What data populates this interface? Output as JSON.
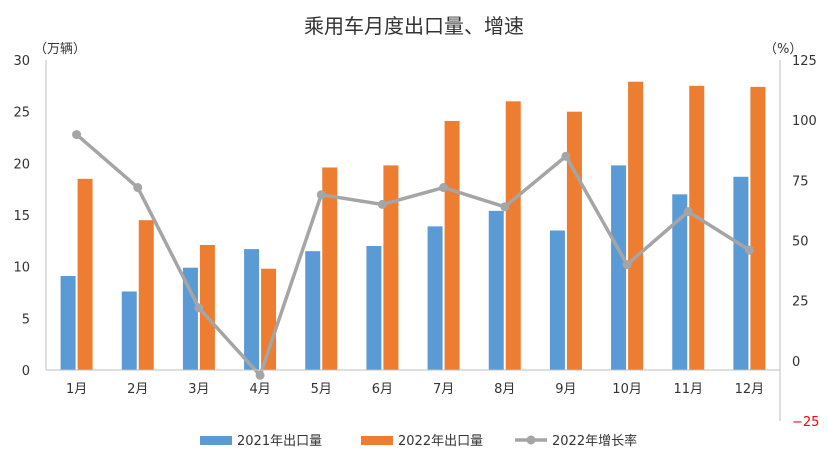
{
  "chart_data": {
    "type": "bar",
    "title": "乘用车月度出口量、增速",
    "left_axis_label": "（万辆）",
    "right_axis_label": "（%）",
    "categories": [
      "1月",
      "2月",
      "3月",
      "4月",
      "5月",
      "6月",
      "7月",
      "8月",
      "9月",
      "10月",
      "11月",
      "12月"
    ],
    "left_ylim": [
      0,
      30
    ],
    "left_ticks": [
      "0",
      "5",
      "10",
      "15",
      "20",
      "25",
      "30"
    ],
    "right_ylim": [
      -25,
      125
    ],
    "right_ticks": [
      "−25",
      "0",
      "25",
      "50",
      "75",
      "100",
      "125"
    ],
    "series": [
      {
        "name": "2021年出口量",
        "type": "bar",
        "axis": "left",
        "color": "#5b9bd5",
        "values": [
          9.1,
          7.6,
          9.9,
          11.7,
          11.5,
          12.0,
          13.9,
          15.4,
          13.5,
          19.8,
          17.0,
          18.7
        ]
      },
      {
        "name": "2022年出口量",
        "type": "bar",
        "axis": "left",
        "color": "#ed7d31",
        "values": [
          18.5,
          14.5,
          12.1,
          9.8,
          19.6,
          19.8,
          24.1,
          26.0,
          25.0,
          27.9,
          27.5,
          27.4
        ]
      },
      {
        "name": "2022年增长率",
        "type": "line",
        "axis": "right",
        "color": "#a5a5a5",
        "values": [
          94,
          72,
          22,
          -6,
          69,
          65,
          72,
          64,
          85,
          40,
          62,
          46
        ]
      }
    ],
    "negative_tick_color": "#ff0000"
  }
}
